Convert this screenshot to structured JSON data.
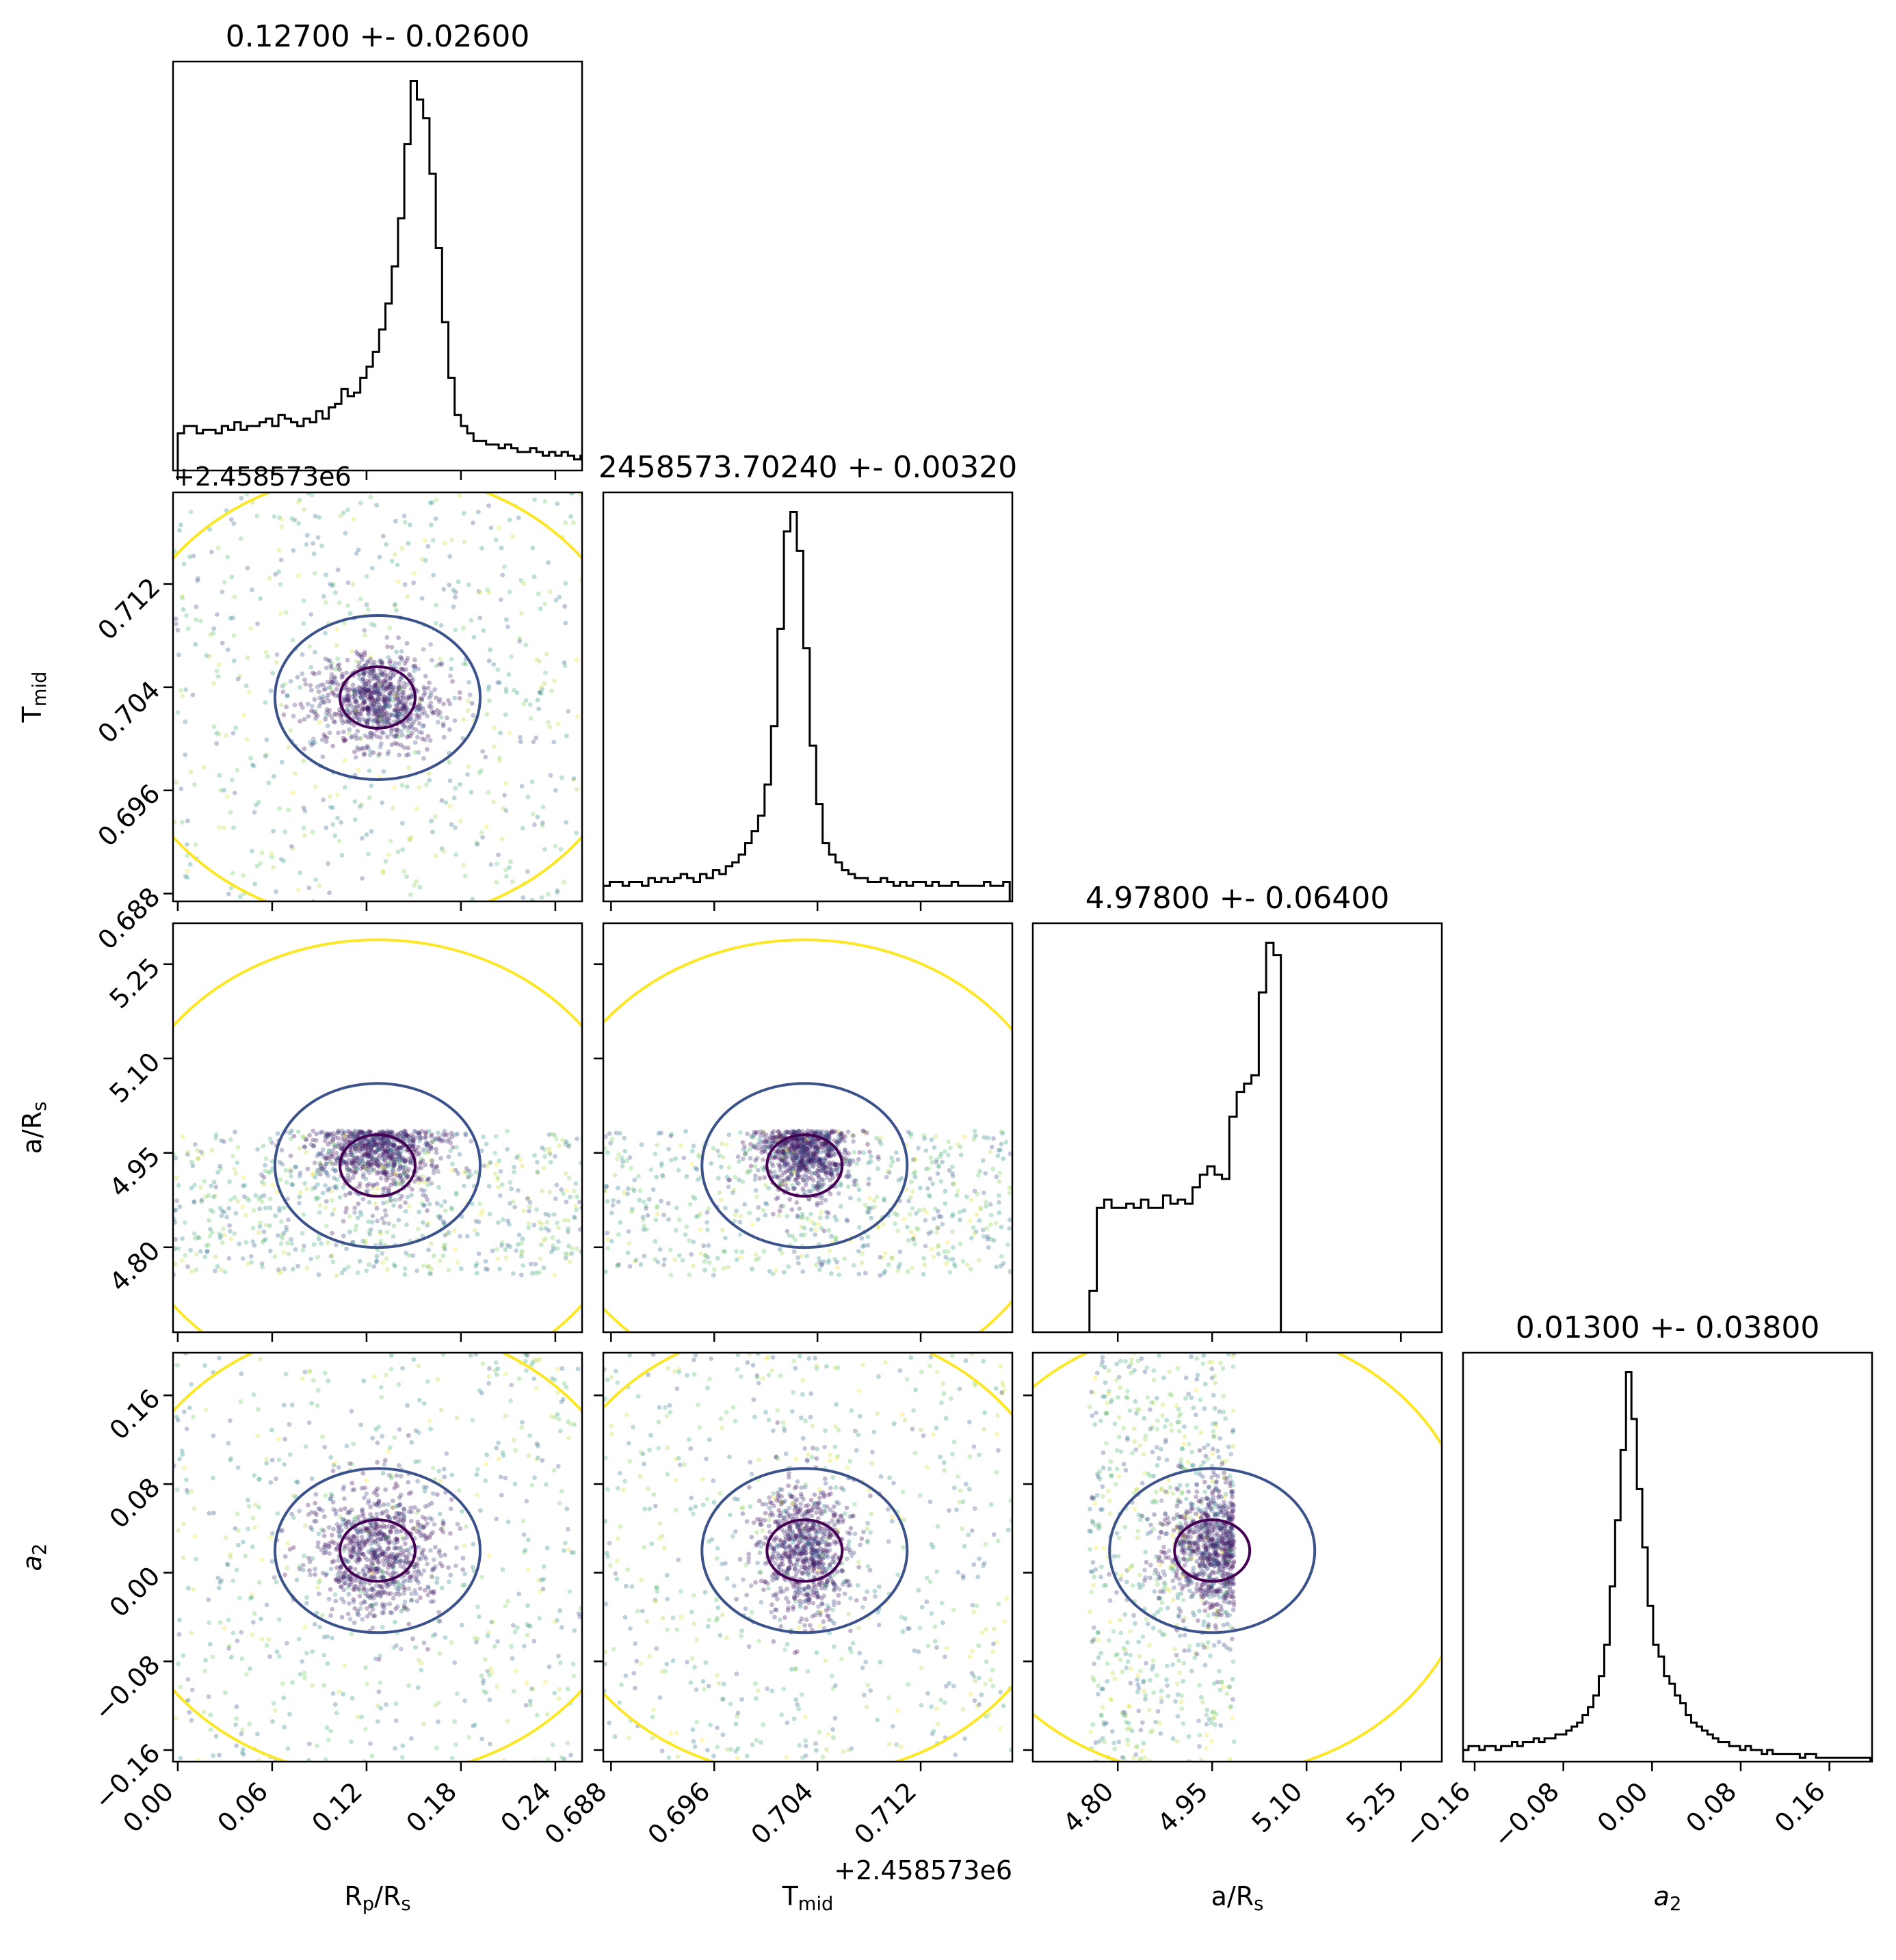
{
  "chart_data": {
    "type": "corner",
    "parameters": [
      {
        "key": "rp",
        "label_main": "R",
        "label_parts": [
          [
            "R",
            ""
          ],
          [
            "p",
            "sub"
          ],
          [
            "/R",
            ""
          ],
          [
            "s",
            "sub"
          ]
        ],
        "title": "0.12700 +- 0.02600",
        "range": [
          -0.003,
          0.257
        ],
        "ticks": [
          0.0,
          0.06,
          0.12,
          0.18,
          0.24
        ],
        "tick_labels": [
          "0.00",
          "0.06",
          "0.12",
          "0.18",
          "0.24"
        ],
        "offset_text": "",
        "hist": {
          "edges_start": 0.0,
          "bin_width": 0.004,
          "counts": [
            10,
            12,
            12,
            10,
            11,
            11,
            10,
            12,
            11,
            13,
            11,
            12,
            12,
            13,
            14,
            12,
            15,
            14,
            13,
            12,
            14,
            13,
            16,
            14,
            17,
            18,
            22,
            20,
            21,
            25,
            28,
            32,
            38,
            45,
            55,
            68,
            88,
            105,
            100,
            95,
            80,
            60,
            40,
            25,
            15,
            12,
            10,
            8,
            8,
            7,
            7,
            6,
            7,
            6,
            5,
            5,
            6,
            5,
            4,
            5,
            4,
            5,
            4,
            3,
            4,
            3
          ]
        }
      },
      {
        "key": "tmid",
        "label_parts": [
          [
            "T",
            ""
          ],
          [
            "mid",
            "sub"
          ]
        ],
        "title": "2458573.70240 +- 0.00320",
        "range": [
          0.6874,
          0.7191
        ],
        "ticks": [
          0.688,
          0.696,
          0.704,
          0.712
        ],
        "tick_labels": [
          "0.688",
          "0.696",
          "0.704",
          "0.712"
        ],
        "offset_text": "+2.458573e6",
        "hist": {
          "edges_start": 0.6874,
          "bin_width": 0.0005,
          "counts": [
            4,
            5,
            5,
            4,
            5,
            5,
            4,
            6,
            5,
            6,
            5,
            6,
            7,
            6,
            5,
            7,
            6,
            8,
            7,
            9,
            10,
            12,
            15,
            18,
            22,
            30,
            45,
            70,
            95,
            100,
            90,
            65,
            40,
            25,
            15,
            12,
            10,
            8,
            7,
            6,
            6,
            5,
            5,
            6,
            5,
            4,
            5,
            4,
            5,
            5,
            4,
            5,
            4,
            4,
            5,
            4,
            4,
            4,
            4,
            5,
            4,
            4,
            5
          ]
        }
      },
      {
        "key": "ars",
        "label_parts": [
          [
            "a/R",
            ""
          ],
          [
            "s",
            "sub"
          ]
        ],
        "title": "4.97800 +- 0.06400",
        "range": [
          4.665,
          5.315
        ],
        "ticks": [
          4.8,
          4.95,
          5.1,
          5.25
        ],
        "tick_labels": [
          "4.80",
          "4.95",
          "5.10",
          "5.25"
        ],
        "offset_text": "",
        "hist": {
          "edges_start": 4.755,
          "bin_width": 0.0117,
          "counts": [
            10,
            30,
            32,
            30,
            30,
            31,
            30,
            32,
            30,
            30,
            33,
            31,
            32,
            31,
            35,
            38,
            40,
            38,
            37,
            52,
            58,
            60,
            62,
            82,
            94,
            91
          ]
        }
      },
      {
        "key": "a2",
        "label_parts": [
          [
            "a",
            "ital"
          ],
          [
            "2",
            "sub"
          ]
        ],
        "title": "0.01300 +- 0.03800",
        "range": [
          -0.1705,
          0.1985
        ],
        "ticks": [
          -0.16,
          -0.08,
          0.0,
          0.08,
          0.16
        ],
        "tick_labels": [
          "−0.16",
          "−0.08",
          "0.00",
          "0.08",
          "0.16"
        ],
        "offset_text": "",
        "hist": {
          "edges_start": -0.1705,
          "bin_width": 0.0049,
          "counts": [
            3,
            4,
            4,
            3,
            4,
            4,
            3,
            4,
            4,
            5,
            4,
            5,
            5,
            6,
            5,
            6,
            6,
            7,
            7,
            8,
            9,
            10,
            12,
            14,
            17,
            22,
            30,
            45,
            62,
            80,
            100,
            88,
            70,
            55,
            40,
            30,
            27,
            22,
            20,
            17,
            15,
            12,
            10,
            9,
            8,
            7,
            6,
            5,
            5,
            4,
            4,
            3,
            4,
            3,
            3,
            2,
            3,
            2,
            2,
            2,
            2,
            2,
            1,
            2,
            2,
            1,
            1,
            1,
            1,
            1,
            1,
            1,
            1,
            1,
            1
          ]
        }
      }
    ],
    "scatter_colormap": "viridis",
    "contour_colors": [
      "#440154",
      "#3b528b",
      "#fde725"
    ]
  }
}
